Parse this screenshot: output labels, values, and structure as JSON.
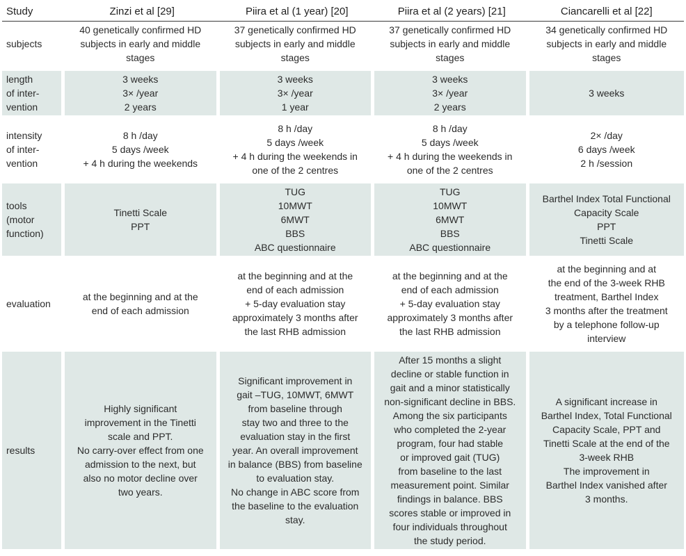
{
  "header": {
    "study": "Study",
    "col1": "Zinzi et al [29]",
    "col2": "Piira et al (1 year) [20]",
    "col3": "Piira et al (2 years) [21]",
    "col4": "Ciancarelli et al [22]"
  },
  "rows": {
    "subjects": {
      "label": "subjects",
      "c1": [
        "40 genetically confirmed HD",
        "subjects in early and middle",
        "stages"
      ],
      "c2": [
        "37 genetically confirmed HD",
        "subjects in early and middle",
        "stages"
      ],
      "c3": [
        "37 genetically confirmed HD",
        "subjects in early and middle",
        "stages"
      ],
      "c4": [
        "34 genetically confirmed HD",
        "subjects in early and middle",
        "stages"
      ]
    },
    "length": {
      "label": [
        "length",
        "of inter-",
        "vention"
      ],
      "c1": [
        "3 weeks",
        "3× /year",
        "2 years"
      ],
      "c2": [
        "3 weeks",
        "3× /year",
        "1 year"
      ],
      "c3": [
        "3 weeks",
        "3× /year",
        "2 years"
      ],
      "c4": [
        "3 weeks"
      ]
    },
    "intensity": {
      "label": [
        "intensity",
        "of inter-",
        "vention"
      ],
      "c1": [
        "8 h /day",
        "5 days /week",
        "+ 4 h during the weekends"
      ],
      "c2": [
        "8 h /day",
        "5 days /week",
        "+ 4 h during the weekends in",
        "one of the 2 centres"
      ],
      "c3": [
        "8 h /day",
        "5 days /week",
        "+ 4 h during the weekends in",
        "one of the 2 centres"
      ],
      "c4": [
        "2× /day",
        "6 days /week",
        "2 h /session"
      ]
    },
    "tools": {
      "label": [
        "tools",
        "(motor",
        "function)"
      ],
      "c1": [
        "Tinetti Scale",
        "PPT"
      ],
      "c2": [
        "TUG",
        "10MWT",
        "6MWT",
        "BBS",
        "ABC questionnaire"
      ],
      "c3": [
        "TUG",
        "10MWT",
        "6MWT",
        "BBS",
        "ABC questionnaire"
      ],
      "c4": [
        "Barthel Index Total Functional",
        "Capacity Scale",
        "PPT",
        "Tinetti Scale"
      ]
    },
    "evaluation": {
      "label": "evaluation",
      "c1": [
        "at the beginning and at the",
        "end of each admission"
      ],
      "c2": [
        "at the beginning and at the",
        "end of each admission",
        "+ 5-day evaluation stay",
        "approximately 3 months after",
        "the last RHB admission"
      ],
      "c3": [
        "at the beginning and at the",
        "end of each admission",
        "+ 5-day evaluation stay",
        "approximately 3 months after",
        "the last RHB admission"
      ],
      "c4": [
        "at the beginning and at",
        "the end of the 3-week RHB",
        "treatment, Barthel Index",
        "3 months after the treatment",
        "by a telephone follow-up",
        "interview"
      ]
    },
    "results": {
      "label": "results",
      "c1": [
        "Highly significant",
        "improvement in the Tinetti",
        "scale and PPT.",
        "No carry-over effect from one",
        "admission to the next, but",
        "also no motor decline over",
        "two years."
      ],
      "c2": [
        "Significant improvement in",
        "gait –TUG, 10MWT, 6MWT",
        "from baseline through",
        "stay two and three to the",
        "evaluation stay in the first",
        "year. An overall improvement",
        "in balance (BBS) from baseline",
        "to evaluation stay.",
        "No change in ABC score from",
        "the baseline to the evaluation",
        "stay."
      ],
      "c3": [
        "After 15 months a slight",
        "decline or stable function in",
        "gait and a minor statistically",
        "non-significant decline in BBS.",
        "Among the six participants",
        "who completed the 2-year",
        "program, four had stable",
        "or improved gait (TUG)",
        "from baseline to the last",
        "measurement point. Similar",
        "findings in balance. BBS",
        "scores stable or improved in",
        "four individuals throughout",
        "the study period."
      ],
      "c4": [
        "A significant increase in",
        "Barthel Index, Total Functional",
        "Capacity Scale, PPT and",
        "Tinetti Scale at the end of the",
        "3-week RHB",
        "The improvement in",
        "Barthel Index vanished after",
        "3 months."
      ]
    }
  }
}
